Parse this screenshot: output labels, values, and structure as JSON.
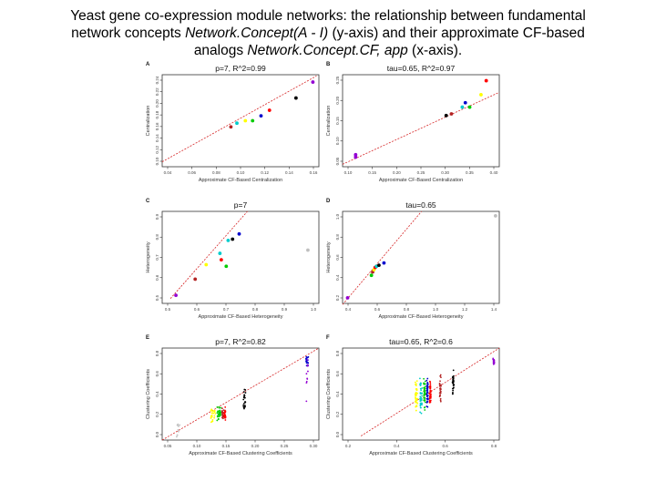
{
  "title": {
    "part1": "Yeast gene co-expression module networks: the relationship between fundamental",
    "part2a": "network concepts ",
    "part2b": "Network.Concept(A - I)",
    "part2c": " (y-axis) and their approximate CF-based",
    "part3a": "analogs ",
    "part3b": "Network.Concept.CF, app",
    "part3c": " (x-axis)",
    "part3d": "."
  },
  "colors": {
    "fit_line": "#d62728",
    "points": [
      "#bfbfbf",
      "#9400d3",
      "#0000cd",
      "#ff0000",
      "#00cc00",
      "#ffff00",
      "#00cccc",
      "#b22222",
      "#000000",
      "#d2b48c",
      "#ff00ff"
    ]
  },
  "chart_data": [
    {
      "id": "A",
      "type": "scatter",
      "title": "p=7, R^2=0.99",
      "xlabel": "Approximate CF-Based Centralization",
      "ylabel": "Centralization",
      "xlim": [
        0.035,
        0.165
      ],
      "ylim": [
        0.1,
        0.25
      ],
      "xticks": [
        "0.04",
        "0.06",
        "0.08",
        "0.10",
        "0.12",
        "0.14",
        "0.16"
      ],
      "yticks": [
        "0.10",
        "0.12",
        "0.14",
        "0.16",
        "0.18",
        "0.20",
        "0.22",
        "0.24"
      ],
      "fit": [
        [
          0.035,
          0.108
        ],
        [
          0.163,
          0.248
        ]
      ],
      "points": [
        {
          "x": 0.092,
          "y": 0.165,
          "c": 7
        },
        {
          "x": 0.097,
          "y": 0.171,
          "c": 6
        },
        {
          "x": 0.104,
          "y": 0.175,
          "c": 5
        },
        {
          "x": 0.11,
          "y": 0.175,
          "c": 4
        },
        {
          "x": 0.117,
          "y": 0.183,
          "c": 2
        },
        {
          "x": 0.124,
          "y": 0.192,
          "c": 3
        },
        {
          "x": 0.146,
          "y": 0.212,
          "c": 8
        },
        {
          "x": 0.16,
          "y": 0.238,
          "c": 1
        }
      ]
    },
    {
      "id": "B",
      "type": "scatter",
      "title": "tau=0.65, R^2=0.97",
      "xlabel": "Approximate CF-Based Centralization",
      "ylabel": "Centralization",
      "xlim": [
        0.08,
        0.44
      ],
      "ylim": [
        0.05,
        0.28
      ],
      "xticks": [
        "0.10",
        "0.15",
        "0.20",
        "0.25",
        "0.30",
        "0.35",
        "0.40"
      ],
      "yticks": [
        "0.05",
        "0.10",
        "0.15",
        "0.20",
        "0.25"
      ],
      "fit": [
        [
          0.08,
          0.056
        ],
        [
          0.44,
          0.236
        ]
      ],
      "points": [
        {
          "x": 0.11,
          "y": 0.08,
          "c": 1
        },
        {
          "x": 0.11,
          "y": 0.074,
          "c": 1
        },
        {
          "x": 0.318,
          "y": 0.178,
          "c": 8
        },
        {
          "x": 0.33,
          "y": 0.182,
          "c": 7
        },
        {
          "x": 0.355,
          "y": 0.199,
          "c": 6
        },
        {
          "x": 0.362,
          "y": 0.21,
          "c": 2
        },
        {
          "x": 0.372,
          "y": 0.199,
          "c": 4
        },
        {
          "x": 0.398,
          "y": 0.23,
          "c": 5
        },
        {
          "x": 0.41,
          "y": 0.265,
          "c": 3
        }
      ]
    },
    {
      "id": "C",
      "type": "scatter",
      "title": "p=7",
      "xlabel": "Approximate CF-Based Heterogeneity",
      "ylabel": "Heterogeneity",
      "xlim": [
        0.45,
        1.02
      ],
      "ylim": [
        0.45,
        1.02
      ],
      "xticks": [
        "0.5",
        "0.6",
        "0.7",
        "0.8",
        "0.9",
        "1.0"
      ],
      "yticks": [
        "0.5",
        "0.6",
        "0.7",
        "0.8",
        "0.9"
      ],
      "fit": [
        [
          0.48,
          0.48
        ],
        [
          0.76,
          1.02
        ]
      ],
      "points": [
        {
          "x": 0.5,
          "y": 0.5,
          "c": 1
        },
        {
          "x": 0.57,
          "y": 0.6,
          "c": 7
        },
        {
          "x": 0.61,
          "y": 0.69,
          "c": 5
        },
        {
          "x": 0.665,
          "y": 0.72,
          "c": 3
        },
        {
          "x": 0.66,
          "y": 0.76,
          "c": 6
        },
        {
          "x": 0.69,
          "y": 0.84,
          "c": 6
        },
        {
          "x": 0.683,
          "y": 0.68,
          "c": 4
        },
        {
          "x": 0.706,
          "y": 0.848,
          "c": 8
        },
        {
          "x": 0.73,
          "y": 0.88,
          "c": 2
        },
        {
          "x": 0.98,
          "y": 0.78,
          "c": 0
        }
      ]
    },
    {
      "id": "D",
      "type": "scatter",
      "title": "tau=0.65",
      "xlabel": "Approximate CF-Based Heterogeneity",
      "ylabel": "Heterogeneity",
      "xlim": [
        0.2,
        1.45
      ],
      "ylim": [
        0.2,
        1.02
      ],
      "xticks": [
        "0.4",
        "0.6",
        "0.8",
        "1.0",
        "1.2",
        "1.4"
      ],
      "yticks": [
        "0.2",
        "0.4",
        "0.6",
        "0.8",
        "1.0"
      ],
      "fit": [
        [
          0.2,
          0.19
        ],
        [
          0.83,
          1.02
        ]
      ],
      "points": [
        {
          "x": 0.24,
          "y": 0.25,
          "c": 1
        },
        {
          "x": 0.43,
          "y": 0.45,
          "c": 4
        },
        {
          "x": 0.44,
          "y": 0.48,
          "c": 7
        },
        {
          "x": 0.45,
          "y": 0.5,
          "c": 5
        },
        {
          "x": 0.46,
          "y": 0.52,
          "c": 3
        },
        {
          "x": 0.47,
          "y": 0.53,
          "c": 6
        },
        {
          "x": 0.49,
          "y": 0.54,
          "c": 8
        },
        {
          "x": 0.53,
          "y": 0.56,
          "c": 2
        },
        {
          "x": 1.42,
          "y": 0.98,
          "c": 0
        }
      ]
    },
    {
      "id": "E",
      "type": "scatter",
      "title": "p=7, R^2=0.82",
      "xlabel": "Approximate CF-Based Clustering Coefficients",
      "ylabel": "Clustering Coefficients",
      "xlim": [
        0.0,
        0.4
      ],
      "ylim": [
        0.0,
        0.9
      ],
      "xticks": [
        "0.05",
        "0.10",
        "0.15",
        "0.20",
        "0.25",
        "0.30"
      ],
      "yticks": [
        "0.0",
        "0.2",
        "0.4",
        "0.6",
        "0.8"
      ],
      "fit": [
        [
          0.0,
          0.0
        ],
        [
          0.4,
          0.9
        ]
      ],
      "clusters": [
        {
          "x": 0.13,
          "yc": 0.24,
          "spread": 0.06,
          "w": 0.012,
          "n": 24,
          "c": 5
        },
        {
          "x": 0.145,
          "yc": 0.26,
          "spread": 0.07,
          "w": 0.01,
          "n": 28,
          "c": 4
        },
        {
          "x": 0.155,
          "yc": 0.25,
          "spread": 0.06,
          "w": 0.005,
          "n": 22,
          "c": 7
        },
        {
          "x": 0.16,
          "yc": 0.26,
          "spread": 0.06,
          "w": 0.005,
          "n": 22,
          "c": 3
        },
        {
          "x": 0.21,
          "yc": 0.38,
          "spread": 0.1,
          "w": 0.006,
          "n": 24,
          "c": 8
        },
        {
          "x": 0.37,
          "yc": 0.78,
          "spread": 0.04,
          "w": 0.006,
          "n": 18,
          "c": 2
        },
        {
          "x": 0.37,
          "yc": 0.6,
          "spread": 0.25,
          "w": 0.004,
          "n": 10,
          "c": 1
        },
        {
          "x": 0.04,
          "yc": 0.12,
          "spread": 0.1,
          "w": 0.01,
          "n": 10,
          "c": 0
        }
      ]
    },
    {
      "id": "F",
      "type": "scatter",
      "title": "tau=0.65, R^2=0.6",
      "xlabel": "Approximate CF-Based Clustering Coefficients",
      "ylabel": "Clustering Coefficients",
      "xlim": [
        0.1,
        0.95
      ],
      "ylim": [
        0.0,
        0.9
      ],
      "xticks": [
        "0.2",
        "0.4",
        "0.6",
        "0.8"
      ],
      "yticks": [
        "0.0",
        "0.2",
        "0.4",
        "0.6",
        "0.8"
      ],
      "fit": [
        [
          0.2,
          0.04
        ],
        [
          0.95,
          0.9
        ]
      ],
      "clusters": [
        {
          "x": 0.5,
          "yc": 0.42,
          "spread": 0.14,
          "w": 0.012,
          "n": 40,
          "c": 5
        },
        {
          "x": 0.525,
          "yc": 0.44,
          "spread": 0.16,
          "w": 0.012,
          "n": 40,
          "c": 6
        },
        {
          "x": 0.545,
          "yc": 0.46,
          "spread": 0.15,
          "w": 0.01,
          "n": 40,
          "c": 4
        },
        {
          "x": 0.56,
          "yc": 0.48,
          "spread": 0.14,
          "w": 0.008,
          "n": 40,
          "c": 2
        },
        {
          "x": 0.575,
          "yc": 0.46,
          "spread": 0.13,
          "w": 0.008,
          "n": 40,
          "c": 3
        },
        {
          "x": 0.63,
          "yc": 0.5,
          "spread": 0.12,
          "w": 0.008,
          "n": 30,
          "c": 7
        },
        {
          "x": 0.7,
          "yc": 0.55,
          "spread": 0.12,
          "w": 0.008,
          "n": 30,
          "c": 8
        },
        {
          "x": 0.92,
          "yc": 0.76,
          "spread": 0.04,
          "w": 0.008,
          "n": 18,
          "c": 1
        }
      ]
    }
  ]
}
